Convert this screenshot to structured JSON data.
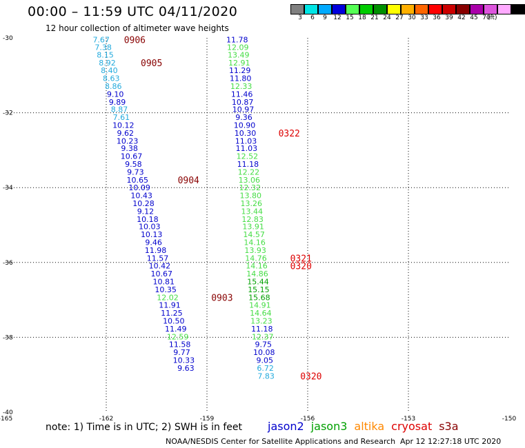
{
  "header": {
    "title": "00:00 – 11:59 UTC 04/11/2020",
    "subtitle": "12 hour collection of altimeter wave heights"
  },
  "footer": {
    "note": "note:  1) Time is in UTC;  2) SWH is in feet",
    "credit": "NOAA/NESDIS Center for Satellite Applications and Research",
    "timestamp": "Apr 12 12:27:18 UTC 2020"
  },
  "satellites": [
    {
      "name": "jason2",
      "color": "#0000cc"
    },
    {
      "name": "jason3",
      "color": "#00a000"
    },
    {
      "name": "altika",
      "color": "#ff8800"
    },
    {
      "name": "cryosat",
      "color": "#dd0000"
    },
    {
      "name": "s3a",
      "color": "#880000"
    }
  ],
  "colorbar": {
    "unit": "(ft)",
    "bins": [
      {
        "label": "3",
        "color": "#808080"
      },
      {
        "label": "6",
        "color": "#00e5e5"
      },
      {
        "label": "9",
        "color": "#00aaff"
      },
      {
        "label": "12",
        "color": "#0000dd"
      },
      {
        "label": "15",
        "color": "#55ff55"
      },
      {
        "label": "18",
        "color": "#00cc00"
      },
      {
        "label": "21",
        "color": "#009000"
      },
      {
        "label": "24",
        "color": "#ffff00"
      },
      {
        "label": "27",
        "color": "#ffb000"
      },
      {
        "label": "30",
        "color": "#ff6600"
      },
      {
        "label": "33",
        "color": "#ff0000"
      },
      {
        "label": "36",
        "color": "#cc0000"
      },
      {
        "label": "39",
        "color": "#880000"
      },
      {
        "label": "42",
        "color": "#aa00aa"
      },
      {
        "label": "45",
        "color": "#dd55dd"
      },
      {
        "label": "70",
        "color": "#ffaaff"
      },
      {
        "label": "",
        "color": "#000000"
      }
    ]
  },
  "chart_data": {
    "type": "scatter",
    "xlim": [
      -165,
      -150
    ],
    "ylim": [
      -40,
      -30
    ],
    "x_ticks": [
      -165,
      -162,
      -159,
      -156,
      -153,
      -150
    ],
    "x_tick_labels": [
      "-165",
      "-162",
      "-159",
      "-156",
      "-153",
      "-150"
    ],
    "y_ticks": [
      -30,
      -32,
      -34,
      -36,
      -38,
      -40
    ],
    "y_tick_labels": [
      "-30",
      "-32",
      "-34",
      "-36",
      "-38",
      "-40"
    ],
    "grid": true,
    "tracks": [
      {
        "name": "track-west",
        "points": [
          {
            "lon": -162.15,
            "lat": -30.05,
            "swh": "7.67",
            "color": "#22aadd"
          },
          {
            "lon": -162.09,
            "lat": -30.25,
            "swh": "7.38",
            "color": "#22aadd"
          },
          {
            "lon": -162.03,
            "lat": -30.45,
            "swh": "8.15",
            "color": "#22aadd"
          },
          {
            "lon": -161.97,
            "lat": -30.66,
            "swh": "8.92",
            "color": "#22aadd"
          },
          {
            "lon": -161.91,
            "lat": -30.87,
            "swh": "8.40",
            "color": "#22aadd"
          },
          {
            "lon": -161.85,
            "lat": -31.08,
            "swh": "8.63",
            "color": "#22aadd"
          },
          {
            "lon": -161.79,
            "lat": -31.29,
            "swh": "8.86",
            "color": "#22aadd"
          },
          {
            "lon": -161.73,
            "lat": -31.5,
            "swh": "9.10",
            "color": "#0000cc"
          },
          {
            "lon": -161.67,
            "lat": -31.71,
            "swh": "9.89",
            "color": "#0000cc"
          },
          {
            "lon": -161.61,
            "lat": -31.91,
            "swh": "8.87",
            "color": "#22aadd"
          },
          {
            "lon": -161.55,
            "lat": -32.12,
            "swh": "7.61",
            "color": "#22aadd"
          },
          {
            "lon": -161.49,
            "lat": -32.33,
            "swh": "10.12",
            "color": "#0000cc"
          },
          {
            "lon": -161.43,
            "lat": -32.54,
            "swh": "9.62",
            "color": "#0000cc"
          },
          {
            "lon": -161.37,
            "lat": -32.75,
            "swh": "10.23",
            "color": "#0000cc"
          },
          {
            "lon": -161.31,
            "lat": -32.95,
            "swh": "9.38",
            "color": "#0000cc"
          },
          {
            "lon": -161.25,
            "lat": -33.16,
            "swh": "10.67",
            "color": "#0000cc"
          },
          {
            "lon": -161.19,
            "lat": -33.37,
            "swh": "9.58",
            "color": "#0000cc"
          },
          {
            "lon": -161.13,
            "lat": -33.58,
            "swh": "9.73",
            "color": "#0000cc"
          },
          {
            "lon": -161.07,
            "lat": -33.79,
            "swh": "10.65",
            "color": "#0000cc"
          },
          {
            "lon": -161.01,
            "lat": -34.0,
            "swh": "10.09",
            "color": "#0000cc"
          },
          {
            "lon": -160.95,
            "lat": -34.21,
            "swh": "10.43",
            "color": "#0000cc"
          },
          {
            "lon": -160.89,
            "lat": -34.42,
            "swh": "10.28",
            "color": "#0000cc"
          },
          {
            "lon": -160.83,
            "lat": -34.63,
            "swh": "9.12",
            "color": "#0000cc"
          },
          {
            "lon": -160.77,
            "lat": -34.84,
            "swh": "10.18",
            "color": "#0000cc"
          },
          {
            "lon": -160.71,
            "lat": -35.04,
            "swh": "10.03",
            "color": "#0000cc"
          },
          {
            "lon": -160.65,
            "lat": -35.25,
            "swh": "10.13",
            "color": "#0000cc"
          },
          {
            "lon": -160.59,
            "lat": -35.46,
            "swh": "9.46",
            "color": "#0000cc"
          },
          {
            "lon": -160.53,
            "lat": -35.67,
            "swh": "11.98",
            "color": "#0000cc"
          },
          {
            "lon": -160.47,
            "lat": -35.88,
            "swh": "11.57",
            "color": "#0000cc"
          },
          {
            "lon": -160.41,
            "lat": -36.09,
            "swh": "10.42",
            "color": "#0000cc"
          },
          {
            "lon": -160.35,
            "lat": -36.3,
            "swh": "10.67",
            "color": "#0000cc"
          },
          {
            "lon": -160.29,
            "lat": -36.51,
            "swh": "10.81",
            "color": "#0000cc"
          },
          {
            "lon": -160.23,
            "lat": -36.72,
            "swh": "10.35",
            "color": "#0000cc"
          },
          {
            "lon": -160.17,
            "lat": -36.93,
            "swh": "12.02",
            "color": "#44dd44"
          },
          {
            "lon": -160.11,
            "lat": -37.14,
            "swh": "11.91",
            "color": "#0000cc"
          },
          {
            "lon": -160.05,
            "lat": -37.35,
            "swh": "11.25",
            "color": "#0000cc"
          },
          {
            "lon": -159.99,
            "lat": -37.56,
            "swh": "10.50",
            "color": "#0000cc"
          },
          {
            "lon": -159.93,
            "lat": -37.77,
            "swh": "11.49",
            "color": "#0000cc"
          },
          {
            "lon": -159.87,
            "lat": -37.98,
            "swh": "12.59",
            "color": "#44dd44"
          },
          {
            "lon": -159.81,
            "lat": -38.19,
            "swh": "11.58",
            "color": "#0000cc"
          },
          {
            "lon": -159.75,
            "lat": -38.4,
            "swh": "9.77",
            "color": "#0000cc"
          },
          {
            "lon": -159.69,
            "lat": -38.61,
            "swh": "10.33",
            "color": "#0000cc"
          },
          {
            "lon": -159.63,
            "lat": -38.82,
            "swh": "9.63",
            "color": "#0000cc"
          }
        ]
      },
      {
        "name": "track-east",
        "points": [
          {
            "lon": -158.1,
            "lat": -30.05,
            "swh": "11.78",
            "color": "#0000cc"
          },
          {
            "lon": -158.08,
            "lat": -30.25,
            "swh": "12.09",
            "color": "#44dd44"
          },
          {
            "lon": -158.06,
            "lat": -30.45,
            "swh": "13.49",
            "color": "#44dd44"
          },
          {
            "lon": -158.04,
            "lat": -30.66,
            "swh": "12.91",
            "color": "#44dd44"
          },
          {
            "lon": -158.02,
            "lat": -30.87,
            "swh": "11.29",
            "color": "#0000cc"
          },
          {
            "lon": -158.0,
            "lat": -31.08,
            "swh": "11.80",
            "color": "#0000cc"
          },
          {
            "lon": -157.98,
            "lat": -31.29,
            "swh": "12.33",
            "color": "#44dd44"
          },
          {
            "lon": -157.96,
            "lat": -31.5,
            "swh": "11.46",
            "color": "#0000cc"
          },
          {
            "lon": -157.94,
            "lat": -31.71,
            "swh": "10.87",
            "color": "#0000cc"
          },
          {
            "lon": -157.92,
            "lat": -31.91,
            "swh": "10.97",
            "color": "#0000cc"
          },
          {
            "lon": -157.9,
            "lat": -32.12,
            "swh": "9.36",
            "color": "#0000cc"
          },
          {
            "lon": -157.88,
            "lat": -32.33,
            "swh": "10.90",
            "color": "#0000cc"
          },
          {
            "lon": -157.86,
            "lat": -32.54,
            "swh": "10.30",
            "color": "#0000cc"
          },
          {
            "lon": -157.84,
            "lat": -32.75,
            "swh": "11.03",
            "color": "#0000cc"
          },
          {
            "lon": -157.82,
            "lat": -32.95,
            "swh": "11.03",
            "color": "#0000cc"
          },
          {
            "lon": -157.8,
            "lat": -33.16,
            "swh": "12.52",
            "color": "#44dd44"
          },
          {
            "lon": -157.78,
            "lat": -33.37,
            "swh": "11.18",
            "color": "#0000cc"
          },
          {
            "lon": -157.76,
            "lat": -33.58,
            "swh": "12.22",
            "color": "#44dd44"
          },
          {
            "lon": -157.74,
            "lat": -33.79,
            "swh": "13.06",
            "color": "#44dd44"
          },
          {
            "lon": -157.72,
            "lat": -34.0,
            "swh": "12.32",
            "color": "#44dd44"
          },
          {
            "lon": -157.7,
            "lat": -34.21,
            "swh": "13.80",
            "color": "#44dd44"
          },
          {
            "lon": -157.68,
            "lat": -34.42,
            "swh": "13.26",
            "color": "#44dd44"
          },
          {
            "lon": -157.66,
            "lat": -34.63,
            "swh": "13.44",
            "color": "#44dd44"
          },
          {
            "lon": -157.64,
            "lat": -34.84,
            "swh": "12.83",
            "color": "#44dd44"
          },
          {
            "lon": -157.62,
            "lat": -35.04,
            "swh": "13.91",
            "color": "#44dd44"
          },
          {
            "lon": -157.6,
            "lat": -35.25,
            "swh": "14.57",
            "color": "#44dd44"
          },
          {
            "lon": -157.58,
            "lat": -35.46,
            "swh": "14.16",
            "color": "#44dd44"
          },
          {
            "lon": -157.56,
            "lat": -35.67,
            "swh": "13.93",
            "color": "#44dd44"
          },
          {
            "lon": -157.54,
            "lat": -35.88,
            "swh": "14.76",
            "color": "#44dd44"
          },
          {
            "lon": -157.52,
            "lat": -36.09,
            "swh": "14.16",
            "color": "#44dd44"
          },
          {
            "lon": -157.5,
            "lat": -36.3,
            "swh": "14.86",
            "color": "#44dd44"
          },
          {
            "lon": -157.48,
            "lat": -36.51,
            "swh": "15.44",
            "color": "#00a000"
          },
          {
            "lon": -157.46,
            "lat": -36.72,
            "swh": "15.15",
            "color": "#00a000"
          },
          {
            "lon": -157.44,
            "lat": -36.93,
            "swh": "15.68",
            "color": "#00a000"
          },
          {
            "lon": -157.42,
            "lat": -37.14,
            "swh": "14.91",
            "color": "#44dd44"
          },
          {
            "lon": -157.4,
            "lat": -37.35,
            "swh": "14.64",
            "color": "#44dd44"
          },
          {
            "lon": -157.38,
            "lat": -37.56,
            "swh": "13.23",
            "color": "#44dd44"
          },
          {
            "lon": -157.36,
            "lat": -37.77,
            "swh": "11.18",
            "color": "#0000cc"
          },
          {
            "lon": -157.34,
            "lat": -37.98,
            "swh": "12.37",
            "color": "#44dd44"
          },
          {
            "lon": -157.32,
            "lat": -38.19,
            "swh": "9.75",
            "color": "#0000cc"
          },
          {
            "lon": -157.3,
            "lat": -38.4,
            "swh": "10.08",
            "color": "#0000cc"
          },
          {
            "lon": -157.28,
            "lat": -38.61,
            "swh": "9.05",
            "color": "#0000cc"
          },
          {
            "lon": -157.26,
            "lat": -38.82,
            "swh": "6.72",
            "color": "#22aadd"
          },
          {
            "lon": -157.24,
            "lat": -39.03,
            "swh": "7.83",
            "color": "#22aadd"
          }
        ]
      }
    ],
    "time_labels": [
      {
        "text": "0906",
        "lon": -161.15,
        "lat": -30.05,
        "color": "#880000"
      },
      {
        "text": "0905",
        "lon": -160.65,
        "lat": -30.66,
        "color": "#880000"
      },
      {
        "text": "0904",
        "lon": -159.55,
        "lat": -33.79,
        "color": "#880000"
      },
      {
        "text": "0903",
        "lon": -158.55,
        "lat": -36.93,
        "color": "#880000"
      },
      {
        "text": "0322",
        "lon": -156.55,
        "lat": -32.54,
        "color": "#dd0000"
      },
      {
        "text": "0321",
        "lon": -156.2,
        "lat": -35.88,
        "color": "#dd0000"
      },
      {
        "text": "0320",
        "lon": -156.2,
        "lat": -36.09,
        "color": "#dd0000"
      },
      {
        "text": "0320",
        "lon": -155.9,
        "lat": -39.03,
        "color": "#dd0000"
      }
    ]
  }
}
